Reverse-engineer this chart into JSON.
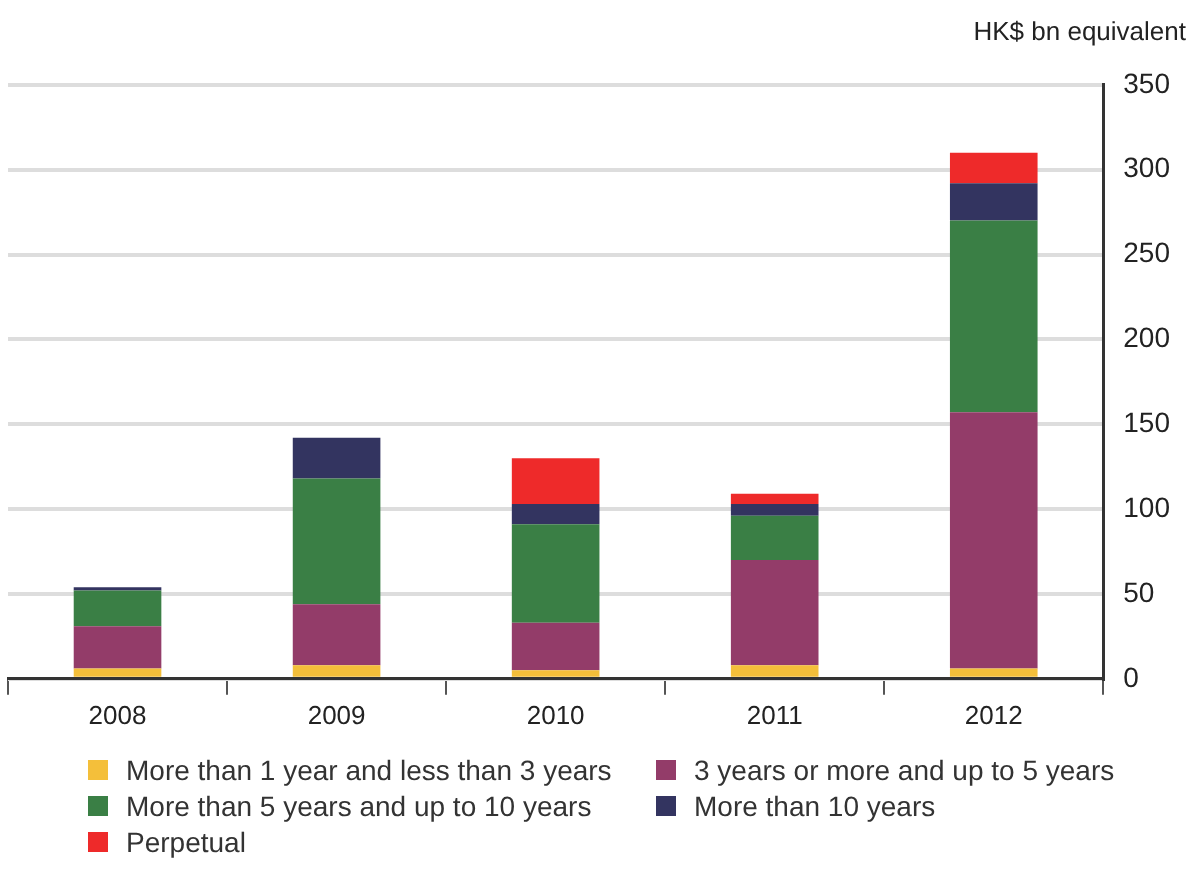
{
  "chart_data": {
    "type": "bar",
    "ylabel": "HK$ bn equivalent",
    "categories": [
      "2008",
      "2009",
      "2010",
      "2011",
      "2012"
    ],
    "stacked": true,
    "series": [
      {
        "name": "More than 1 year and less than 3 years",
        "color": "#f4bf3a",
        "values": [
          6,
          8,
          5,
          8,
          6
        ]
      },
      {
        "name": "3 years or more and up to 5 years",
        "color": "#933c69",
        "values": [
          25,
          36,
          28,
          62,
          151
        ]
      },
      {
        "name": "More than 5 years and up to 10 years",
        "color": "#3a7f45",
        "values": [
          21,
          74,
          58,
          26,
          113
        ]
      },
      {
        "name": "More than 10 years",
        "color": "#333460",
        "values": [
          2,
          24,
          12,
          7,
          22
        ]
      },
      {
        "name": "Perpetual",
        "color": "#ee2a2a",
        "values": [
          0,
          0,
          27,
          6,
          18
        ]
      }
    ],
    "ylim": [
      0,
      350
    ],
    "yticks": [
      0,
      50,
      100,
      150,
      200,
      250,
      300,
      350
    ],
    "grid": "y",
    "legend": "bottom"
  }
}
